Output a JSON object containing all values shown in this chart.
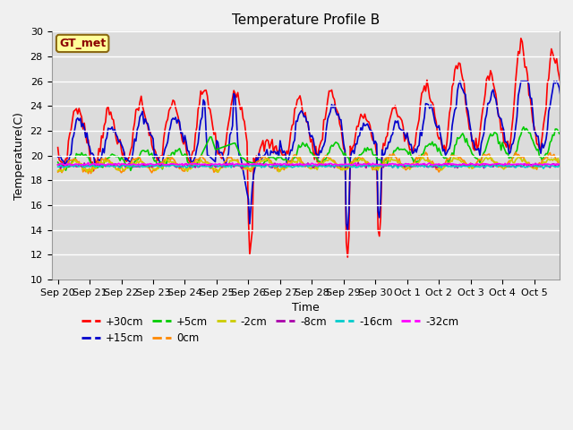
{
  "title": "Temperature Profile B",
  "xlabel": "Time",
  "ylabel": "Temperature(C)",
  "ylim": [
    10,
    30
  ],
  "yticks": [
    10,
    12,
    14,
    16,
    18,
    20,
    22,
    24,
    26,
    28,
    30
  ],
  "plot_bg_color": "#dcdcdc",
  "fig_bg_color": "#f0f0f0",
  "grid_color": "#ffffff",
  "annotation_text": "GT_met",
  "annotation_bg": "#ffff99",
  "annotation_border": "#8b6914",
  "series_order": [
    "+30cm",
    "+15cm",
    "+5cm",
    "0cm",
    "-2cm",
    "-8cm",
    "-16cm",
    "-32cm"
  ],
  "series_colors": {
    "+30cm": "#ff0000",
    "+15cm": "#0000cc",
    "+5cm": "#00cc00",
    "0cm": "#ff8800",
    "-2cm": "#cccc00",
    "-8cm": "#aa00aa",
    "-16cm": "#00cccc",
    "-32cm": "#ff00ff"
  },
  "legend_rows": [
    [
      "+30cm",
      "+15cm",
      "+5cm",
      "0cm",
      "-2cm",
      "-8cm"
    ],
    [
      "-16cm",
      "-32cm"
    ]
  ],
  "xtick_labels": [
    "Sep 20",
    "Sep 21",
    "Sep 22",
    "Sep 23",
    "Sep 24",
    "Sep 25",
    "Sep 26",
    "Sep 27",
    "Sep 28",
    "Sep 29",
    "Sep 30",
    "Oct 1",
    "Oct 2",
    "Oct 3",
    "Oct 4",
    "Oct 5"
  ]
}
